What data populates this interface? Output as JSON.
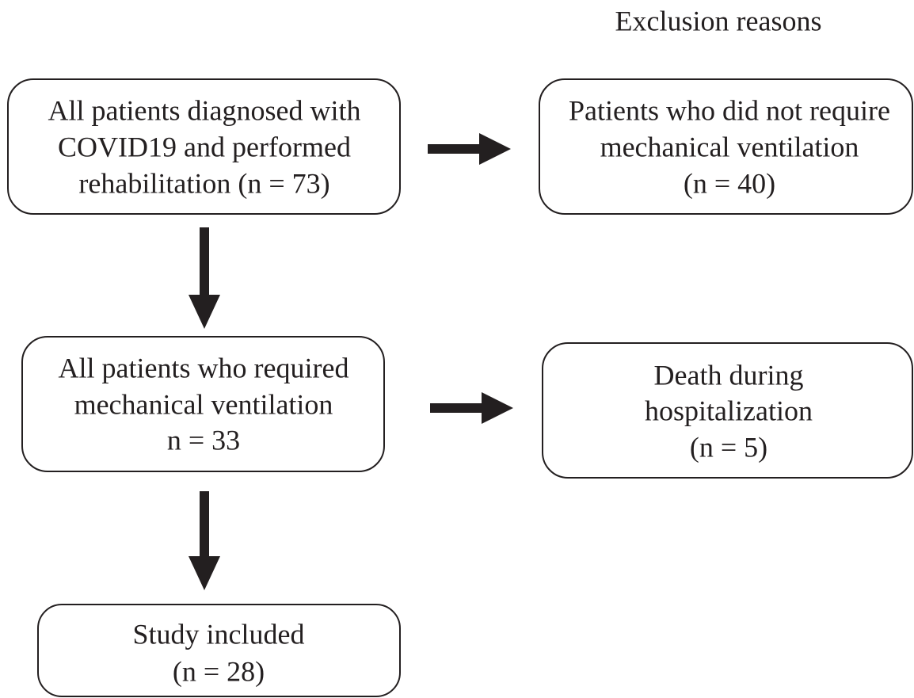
{
  "header": {
    "title": "Exclusion reasons"
  },
  "nodes": [
    {
      "lines": [
        "All patients diagnosed with",
        "COVID19 and performed",
        "rehabilitation (n = 73)"
      ]
    },
    {
      "lines": [
        "Patients who did not require",
        "mechanical ventilation",
        "(n = 40)"
      ]
    },
    {
      "lines": [
        "All patients who required",
        "mechanical ventilation",
        "n = 33"
      ]
    },
    {
      "lines": [
        "Death during",
        "hospitalization",
        "(n = 5)"
      ]
    },
    {
      "lines": [
        "Study included",
        "(n = 28)"
      ]
    }
  ]
}
